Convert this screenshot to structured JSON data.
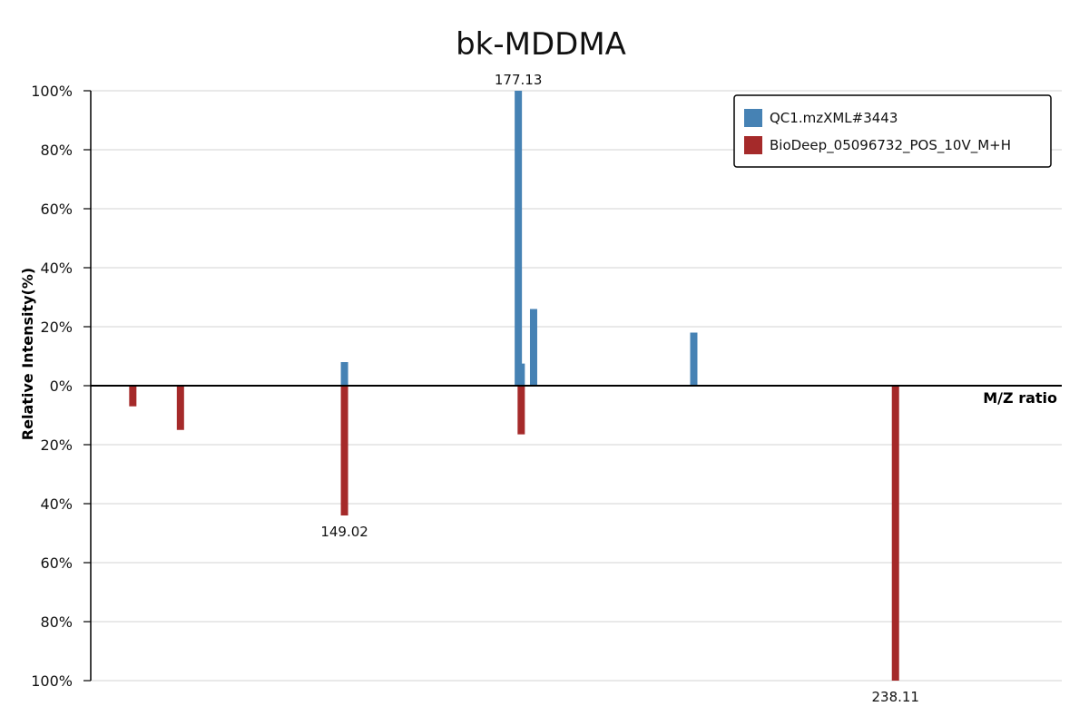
{
  "chart_data": {
    "type": "bar",
    "title": "bk-MDDMA",
    "xlabel": "M/Z ratio",
    "ylabel": "Relative Intensity(%)",
    "y_ticks_top": [
      "100%",
      "80%",
      "60%",
      "40%",
      "20%",
      "0%"
    ],
    "y_ticks_bottom": [
      "20%",
      "40%",
      "60%",
      "80%",
      "100%"
    ],
    "ylim": [
      -100,
      100
    ],
    "xlim": [
      108,
      265
    ],
    "grid": true,
    "legend_position": "top-right",
    "series": [
      {
        "name": "QC1.mzXML#3443",
        "color": "#4682b4",
        "points": [
          {
            "mz": 149.02,
            "intensity": 8
          },
          {
            "mz": 177.13,
            "intensity": 100,
            "label": "177.13"
          },
          {
            "mz": 177.6,
            "intensity": 7.5
          },
          {
            "mz": 179.6,
            "intensity": 26
          },
          {
            "mz": 205.5,
            "intensity": 18
          }
        ]
      },
      {
        "name": "BioDeep_05096732_POS_10V_M+H",
        "color": "#a52a2a",
        "points": [
          {
            "mz": 114.8,
            "intensity": -7
          },
          {
            "mz": 122.5,
            "intensity": -15
          },
          {
            "mz": 149.02,
            "intensity": -44,
            "label": "149.02"
          },
          {
            "mz": 177.6,
            "intensity": -16.5
          },
          {
            "mz": 238.11,
            "intensity": -100,
            "label": "238.11"
          }
        ]
      }
    ]
  }
}
